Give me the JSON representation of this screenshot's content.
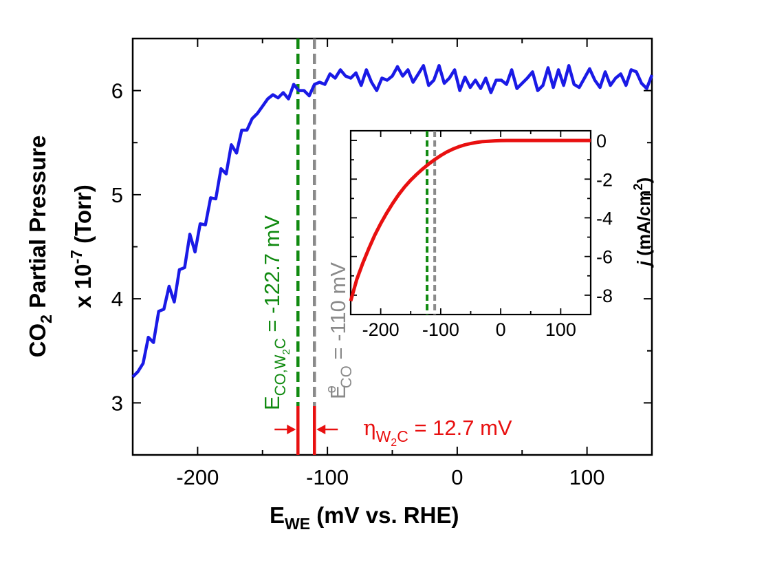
{
  "chart_data": [
    {
      "type": "line",
      "xlabel_main": "E",
      "xlabel_sub": "WE",
      "xlabel_rest": " (mV vs. RHE)",
      "ylabel_line1_pre": "CO",
      "ylabel_line1_sub": "2",
      "ylabel_line1_rest": " Partial Pressure",
      "ylabel_line2_pre": "x 10",
      "ylabel_line2_sup": "-7",
      "ylabel_line2_rest": " (Torr)",
      "xlim": [
        -250,
        150
      ],
      "ylim": [
        2.5,
        6.5
      ],
      "xticks": [
        -200,
        -100,
        0,
        100
      ],
      "xtick_labels": [
        "-200",
        "-100",
        "0",
        "100"
      ],
      "yticks": [
        3,
        4,
        5,
        6
      ],
      "ytick_labels": [
        "3",
        "4",
        "5",
        "6"
      ],
      "line_color": "#1a1ae6",
      "series": [
        {
          "x": [
            -250,
            -246,
            -242,
            -238,
            -234,
            -230,
            -226,
            -222,
            -218,
            -214,
            -210,
            -206,
            -202,
            -198,
            -194,
            -190,
            -186,
            -182,
            -178,
            -174,
            -170,
            -166,
            -162,
            -158,
            -154,
            -150,
            -146,
            -142,
            -138,
            -134,
            -130,
            -126,
            -122,
            -118,
            -114,
            -110,
            -106,
            -102,
            -98,
            -94,
            -90,
            -86,
            -82,
            -78,
            -74,
            -70,
            -66,
            -62,
            -58,
            -54,
            -50,
            -46,
            -42,
            -38,
            -34,
            -30,
            -26,
            -22,
            -18,
            -14,
            -10,
            -6,
            -2,
            2,
            6,
            10,
            14,
            18,
            22,
            26,
            30,
            34,
            38,
            42,
            46,
            50,
            54,
            58,
            62,
            66,
            70,
            74,
            78,
            82,
            86,
            90,
            94,
            98,
            102,
            106,
            110,
            114,
            118,
            122,
            126,
            130,
            134,
            138,
            142,
            146,
            150
          ],
          "y": [
            3.25,
            3.3,
            3.38,
            3.63,
            3.58,
            3.88,
            3.9,
            4.12,
            3.97,
            4.28,
            4.3,
            4.62,
            4.45,
            4.72,
            4.71,
            4.97,
            4.96,
            5.25,
            5.2,
            5.48,
            5.4,
            5.62,
            5.62,
            5.73,
            5.78,
            5.85,
            5.92,
            5.96,
            5.93,
            5.98,
            5.92,
            6.06,
            6.0,
            6.0,
            5.95,
            6.06,
            6.08,
            6.06,
            6.16,
            6.12,
            6.2,
            6.14,
            6.12,
            6.17,
            6.05,
            6.2,
            6.08,
            6.0,
            6.12,
            6.1,
            6.14,
            6.23,
            6.14,
            6.2,
            6.08,
            6.16,
            6.24,
            6.05,
            6.1,
            6.24,
            6.07,
            6.12,
            6.2,
            6.0,
            6.13,
            6.03,
            6.1,
            6.02,
            6.12,
            5.98,
            6.1,
            6.1,
            6.06,
            6.2,
            6.02,
            6.07,
            6.12,
            6.18,
            6.0,
            6.05,
            6.22,
            6.03,
            6.2,
            6.05,
            6.24,
            6.06,
            6.03,
            6.12,
            6.21,
            6.1,
            6.03,
            6.18,
            6.05,
            6.12,
            6.16,
            6.05,
            6.2,
            6.18,
            6.07,
            6.02,
            6.15
          ]
        }
      ]
    },
    {
      "type": "line",
      "ylabel_j": "j",
      "ylabel_unit": " (mA/cm",
      "ylabel_sup": "2",
      "ylabel_close": ")",
      "xlim": [
        -250,
        150
      ],
      "ylim": [
        -9,
        0.5
      ],
      "xticks": [
        -200,
        -100,
        0,
        100
      ],
      "xtick_labels": [
        "-200",
        "-100",
        "0",
        "100"
      ],
      "yticks": [
        0,
        -2,
        -4,
        -6,
        -8
      ],
      "ytick_labels": [
        "0",
        "-2",
        "-4",
        "-6",
        "-8"
      ],
      "line_color": "#e81010",
      "series": [
        {
          "x": [
            -250,
            -240,
            -230,
            -220,
            -210,
            -200,
            -190,
            -180,
            -170,
            -160,
            -150,
            -140,
            -130,
            -120,
            -110,
            -100,
            -90,
            -80,
            -70,
            -60,
            -50,
            -40,
            -30,
            -20,
            -10,
            0,
            10,
            20,
            30,
            40,
            50,
            60,
            70,
            80,
            90,
            100,
            110,
            120,
            130,
            140,
            150
          ],
          "y": [
            -8.3,
            -7.2,
            -6.35,
            -5.6,
            -4.9,
            -4.3,
            -3.75,
            -3.25,
            -2.8,
            -2.4,
            -2.05,
            -1.75,
            -1.47,
            -1.22,
            -0.99,
            -0.78,
            -0.6,
            -0.45,
            -0.33,
            -0.23,
            -0.16,
            -0.1,
            -0.06,
            -0.04,
            -0.02,
            -0.01,
            0,
            0,
            0,
            0,
            0,
            0,
            0,
            0,
            0,
            0,
            0,
            0,
            0,
            0,
            0
          ]
        }
      ]
    }
  ],
  "annotations": {
    "e_co_w2c_pre": "E",
    "e_co_w2c_sub": "CO,W",
    "e_co_w2c_sub2": "2",
    "e_co_w2c_sub3": "C",
    "e_co_w2c_rest": " = -122.7 mV",
    "e_co_w2c_value": -122.7,
    "e_co_pre": "E",
    "e_co_sup": "o",
    "e_co_sub": "CO",
    "e_co_rest": " = -110 mV",
    "e_co_value": -110,
    "eta_symbol": "η",
    "eta_sub": "W",
    "eta_sub2": "2",
    "eta_sub3": "C",
    "eta_rest": " = 12.7 mV",
    "green": "#108a10",
    "gray": "#8a8a8a",
    "red": "#e81010"
  }
}
